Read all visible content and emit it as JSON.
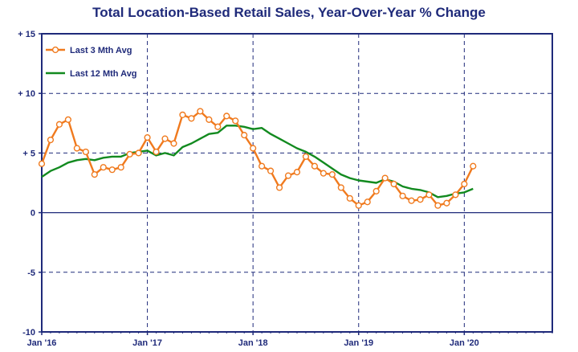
{
  "chart_data": {
    "type": "line",
    "title": "Total Location-Based Retail Sales, Year-Over-Year % Change",
    "xlabel": "",
    "ylabel": "",
    "x_ticks": [
      "Jan '16",
      "Jan '17",
      "Jan '18",
      "Jan '19",
      "Jan '20"
    ],
    "y_ticks": [
      "+ 15",
      "+ 10",
      "+ 5",
      "0",
      "-5",
      "-10"
    ],
    "ylim": [
      -10,
      15
    ],
    "grid": true,
    "legend_position": "top-left",
    "series": [
      {
        "name": "Last 3 Mth Avg",
        "color": "#F07A1E",
        "marker": "circle",
        "x": [
          "2016-01",
          "2016-02",
          "2016-03",
          "2016-04",
          "2016-05",
          "2016-06",
          "2016-07",
          "2016-08",
          "2016-09",
          "2016-10",
          "2016-11",
          "2016-12",
          "2017-01",
          "2017-02",
          "2017-03",
          "2017-04",
          "2017-05",
          "2017-06",
          "2017-07",
          "2017-08",
          "2017-09",
          "2017-10",
          "2017-11",
          "2017-12",
          "2018-01",
          "2018-02",
          "2018-03",
          "2018-04",
          "2018-05",
          "2018-06",
          "2018-07",
          "2018-08",
          "2018-09",
          "2018-10",
          "2018-11",
          "2018-12",
          "2019-01",
          "2019-02",
          "2019-03",
          "2019-04",
          "2019-05",
          "2019-06",
          "2019-07",
          "2019-08",
          "2019-09",
          "2019-10",
          "2019-11",
          "2019-12",
          "2020-01",
          "2020-02"
        ],
        "values": [
          4.1,
          6.1,
          7.4,
          7.8,
          5.4,
          5.1,
          3.2,
          3.8,
          3.6,
          3.8,
          4.9,
          5.0,
          6.3,
          5.1,
          6.2,
          5.8,
          8.2,
          7.9,
          8.5,
          7.8,
          7.2,
          8.1,
          7.7,
          6.5,
          5.4,
          3.9,
          3.5,
          2.1,
          3.1,
          3.4,
          4.7,
          3.9,
          3.3,
          3.2,
          2.1,
          1.2,
          0.6,
          0.9,
          1.8,
          2.9,
          2.4,
          1.4,
          1.0,
          1.1,
          1.5,
          0.6,
          0.8,
          1.5,
          2.4,
          3.9
        ]
      },
      {
        "name": "Last 12 Mth Avg",
        "color": "#128A1F",
        "marker": "none",
        "x": [
          "2016-01",
          "2016-02",
          "2016-03",
          "2016-04",
          "2016-05",
          "2016-06",
          "2016-07",
          "2016-08",
          "2016-09",
          "2016-10",
          "2016-11",
          "2016-12",
          "2017-01",
          "2017-02",
          "2017-03",
          "2017-04",
          "2017-05",
          "2017-06",
          "2017-07",
          "2017-08",
          "2017-09",
          "2017-10",
          "2017-11",
          "2017-12",
          "2018-01",
          "2018-02",
          "2018-03",
          "2018-04",
          "2018-05",
          "2018-06",
          "2018-07",
          "2018-08",
          "2018-09",
          "2018-10",
          "2018-11",
          "2018-12",
          "2019-01",
          "2019-02",
          "2019-03",
          "2019-04",
          "2019-05",
          "2019-06",
          "2019-07",
          "2019-08",
          "2019-09",
          "2019-10",
          "2019-11",
          "2019-12",
          "2020-01",
          "2020-02"
        ],
        "values": [
          3.0,
          3.5,
          3.8,
          4.2,
          4.4,
          4.5,
          4.4,
          4.6,
          4.7,
          4.7,
          5.0,
          5.1,
          5.2,
          4.8,
          5.0,
          4.8,
          5.5,
          5.8,
          6.2,
          6.6,
          6.7,
          7.3,
          7.3,
          7.2,
          7.0,
          7.1,
          6.6,
          6.2,
          5.8,
          5.4,
          5.1,
          4.7,
          4.2,
          3.7,
          3.2,
          2.9,
          2.7,
          2.6,
          2.5,
          2.8,
          2.6,
          2.2,
          2.0,
          1.9,
          1.7,
          1.3,
          1.4,
          1.6,
          1.7,
          2.0
        ]
      }
    ]
  },
  "colors": {
    "axis": "#1F2A7A",
    "grid": "#1F2A7A",
    "background": "#FFFFFF"
  }
}
